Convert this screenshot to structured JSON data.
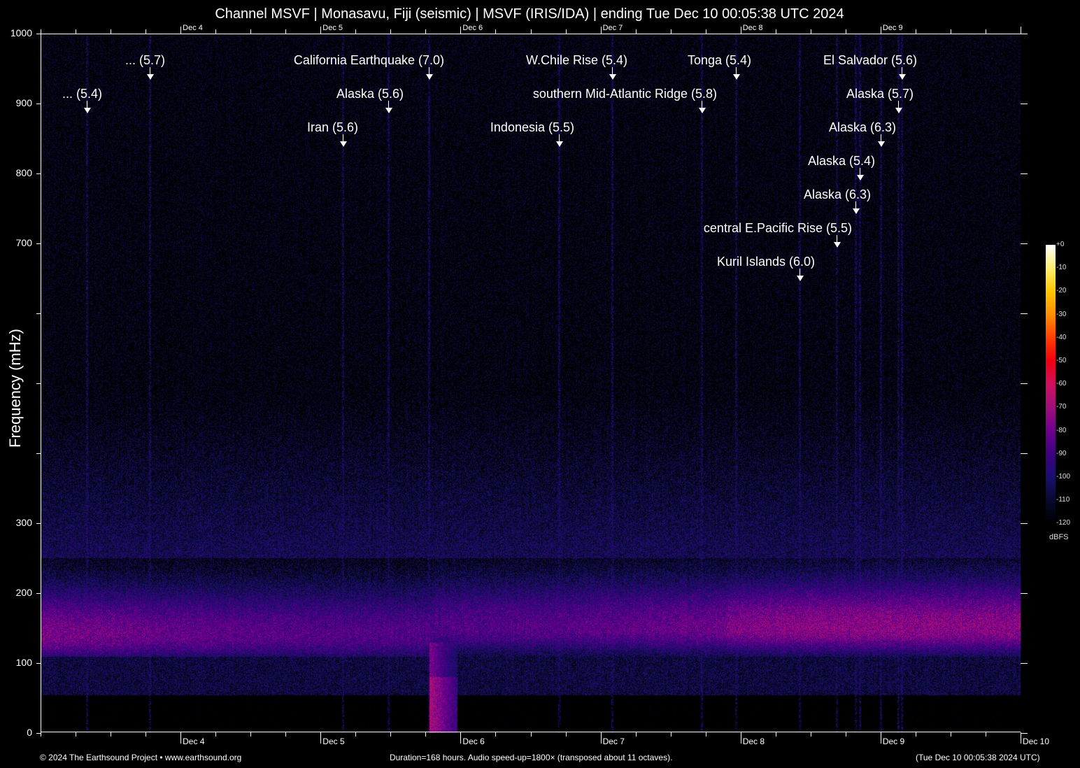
{
  "title": "Channel MSVF | Monasavu, Fiji (seismic) | MSVF (IRIS/IDA) | ending Tue Dec 10 00:05:38 UTC 2024",
  "chart_data": {
    "type": "heatmap",
    "title": "Channel MSVF | Monasavu, Fiji (seismic) | MSVF (IRIS/IDA) | ending Tue Dec 10 00:05:38 UTC 2024",
    "ylabel": "Frequency (mHz)",
    "ylim": [
      0,
      1000
    ],
    "y_ticks": [
      0,
      100,
      200,
      300,
      400,
      500,
      600,
      700,
      800,
      900,
      1000
    ],
    "y_tick_labels": [
      "0",
      "100",
      "200",
      "300",
      "",
      "",
      "",
      "700",
      "800",
      "900",
      "1000"
    ],
    "x_range": [
      "2024-12-03T00:05:38Z",
      "2024-12-10T00:05:38Z"
    ],
    "x_tick_labels": [
      "Dec 4",
      "Dec 5",
      "Dec 6",
      "Dec 7",
      "Dec 8",
      "Dec 9",
      "Dec 10"
    ],
    "x_top_tick_labels": [
      "Dec 4",
      "Dec 5",
      "Dec 6",
      "Dec 7",
      "Dec 8",
      "Dec 9"
    ],
    "colorbar": {
      "unit": "dBFS",
      "labels": [
        "+0",
        "-10",
        "-20",
        "-30",
        "-40",
        "-50",
        "-60",
        "-70",
        "-80",
        "-90",
        "-100",
        "-110",
        "-120"
      ],
      "range": [
        -120,
        0
      ],
      "colors": [
        "#000000",
        "#0a0a30",
        "#1a1070",
        "#400080",
        "#700090",
        "#a0107a",
        "#d01060",
        "#f00010",
        "#ff4000",
        "#ff9000",
        "#ffc800",
        "#fff070",
        "#ffffff"
      ]
    },
    "annotations": [
      {
        "label": "... (5.4)",
        "time": "2024-12-03T08:00Z"
      },
      {
        "label": "... (5.7)",
        "time": "2024-12-03T18:50Z"
      },
      {
        "label": "California Earthquake (7.0)",
        "time": "2024-12-05T18:40Z"
      },
      {
        "label": "Alaska (5.6)",
        "time": "2024-12-05T11:40Z"
      },
      {
        "label": "Iran (5.6)",
        "time": "2024-12-05T03:55Z"
      },
      {
        "label": "W.Chile Rise (5.4)",
        "time": "2024-12-07T02:05Z"
      },
      {
        "label": "southern Mid-Atlantic Ridge (5.8)",
        "time": "2024-12-07T17:25Z"
      },
      {
        "label": "Indonesia (5.5)",
        "time": "2024-12-06T17:00Z"
      },
      {
        "label": "Tonga (5.4)",
        "time": "2024-12-07T23:15Z"
      },
      {
        "label": "El Salvador (5.6)",
        "time": "2024-12-09T03:40Z"
      },
      {
        "label": "Alaska (5.7)",
        "time": "2024-12-09T03:10Z"
      },
      {
        "label": "Alaska (6.3)",
        "time": "2024-12-09T00:05Z"
      },
      {
        "label": "Alaska (5.4)",
        "time": "2024-12-08T20:30Z"
      },
      {
        "label": "Alaska (6.3)",
        "time": "2024-12-08T19:45Z"
      },
      {
        "label": "central E.Pacific Rise (5.5)",
        "time": "2024-12-08T16:30Z"
      },
      {
        "label": "Kuril Islands (6.0)",
        "time": "2024-12-08T10:15Z"
      }
    ]
  },
  "footer": {
    "copyright": "© 2024 The Earthsound Project • www.earthsound.org",
    "info": "Duration=168 hours. Audio speed-up=1800× (transposed about 11 octaves).",
    "timestamp": "(Tue Dec 10 00:05:38 2024 UTC)"
  }
}
